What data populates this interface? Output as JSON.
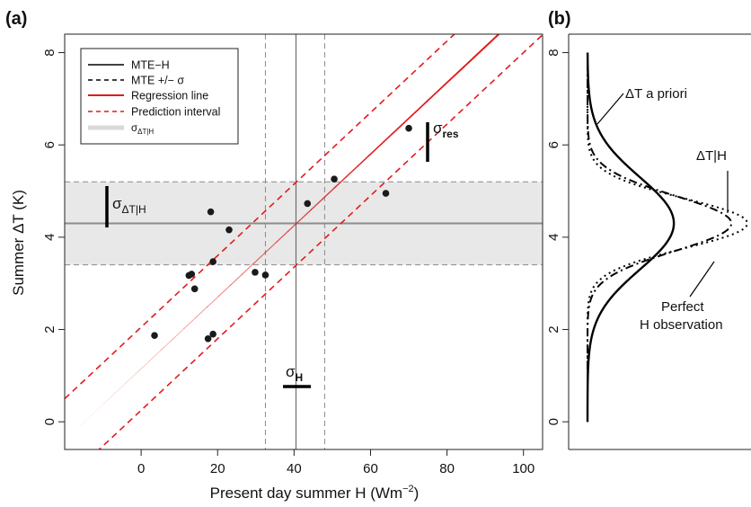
{
  "chart_data": [
    {
      "panel_label": "(a)",
      "type": "scatter",
      "xlabel_main": "Present day summer H (Wm",
      "xlabel_sup": "−2",
      "xlabel_close": ")",
      "ylabel": "Summer ΔT (K)",
      "xlim": [
        -20,
        105
      ],
      "ylim": [
        -0.6,
        8.4
      ],
      "xticks": [
        "0",
        "20",
        "40",
        "60",
        "80",
        "100"
      ],
      "xtick_values": [
        0,
        20,
        40,
        60,
        80,
        100
      ],
      "yticks": [
        "0",
        "2",
        "4",
        "6",
        "8"
      ],
      "ytick_values": [
        0,
        2,
        4,
        6,
        8
      ],
      "points": {
        "x": [
          3.5,
          12.5,
          13.2,
          14,
          17.5,
          18.2,
          18.8,
          18.8,
          23,
          29.8,
          32.5,
          43.5,
          50.5,
          64,
          70
        ],
        "y": [
          1.87,
          3.17,
          3.2,
          2.88,
          1.8,
          4.55,
          3.47,
          1.9,
          4.16,
          3.24,
          3.18,
          4.73,
          5.26,
          4.95,
          6.36
        ]
      },
      "mte_h": {
        "x": 40.5,
        "sigma_low": 32.5,
        "sigma_high": 48
      },
      "delta_t_given_h": {
        "center": 4.3,
        "low": 3.4,
        "high": 5.2
      },
      "regression": {
        "intercept": 1.15,
        "slope": 0.0775,
        "pi_halfwidth": 0.9,
        "x_start": -16,
        "x_end": 105
      },
      "legend": {
        "position": "top-left",
        "entries": [
          {
            "label": "MTE−H",
            "style": "solid",
            "color": "#000000"
          },
          {
            "label": "MTE +/− σ",
            "style": "dashed",
            "color": "#000000"
          },
          {
            "label": "Regression line",
            "style": "solid",
            "color": "#e31a1c"
          },
          {
            "label": "Prediction interval",
            "style": "dashed",
            "color": "#e31a1c"
          },
          {
            "label": "σ",
            "sub": "ΔT|H",
            "style": "band",
            "color": "#d9d9d9"
          }
        ]
      },
      "annotations": {
        "sigma_res": {
          "sym": "σ",
          "sub": "res"
        },
        "sigma_dth": {
          "sym": "σ",
          "sub": "ΔT|H"
        },
        "sigma_h": {
          "sym": "σ",
          "sub": "H"
        }
      }
    },
    {
      "panel_label": "(b)",
      "type": "line",
      "ylim": [
        -0.6,
        8.4
      ],
      "yticks": [
        "0",
        "2",
        "4",
        "6",
        "8"
      ],
      "ytick_values": [
        0,
        2,
        4,
        6,
        8
      ],
      "series": [
        {
          "name": "ΔT a priori",
          "style": "solid",
          "mean": 4.3,
          "sd": 1.0
        },
        {
          "name": "ΔT|H",
          "style": "dotdash",
          "mean": 4.3,
          "sd": 0.6
        },
        {
          "name": "Perfect H observation",
          "style": "dotted",
          "mean": 4.3,
          "sd": 0.54
        }
      ],
      "annotations": {
        "a_priori": "ΔT a priori",
        "dth": "ΔT|H",
        "perfect_line1": "Perfect",
        "perfect_line2": "H observation"
      }
    }
  ]
}
